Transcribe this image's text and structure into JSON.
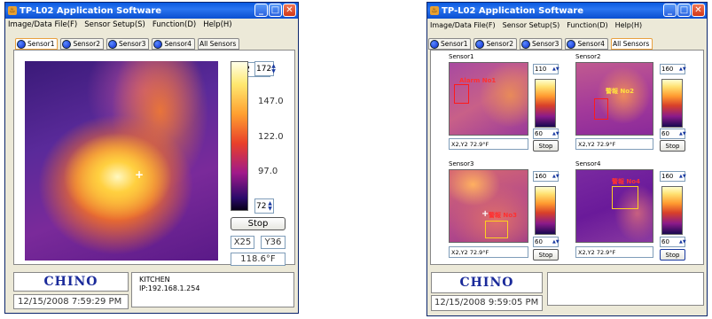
{
  "left": {
    "title": "TP-L02 Application Software",
    "menu": [
      "Image/Data File(F)",
      "Sensor Setup(S)",
      "Function(D)",
      "Help(H)"
    ],
    "tabs": [
      "Sensor1",
      "Sensor2",
      "Sensor3",
      "Sensor4",
      "All Sensors"
    ],
    "active_tab": "Sensor1",
    "scale_max": "172",
    "scale_min": "72",
    "ticks": [
      "147.0",
      "122.0",
      "97.0"
    ],
    "stop_label": "Stop",
    "x_coord": "X25",
    "y_coord": "Y36",
    "temperature": "118.6°F",
    "logo": "CHINO",
    "datetime": "12/15/2008 7:59:29 PM",
    "location": "KITCHEN",
    "ip": "IP:192.168.1.254"
  },
  "right": {
    "title": "TP-L02 Application Software",
    "menu": [
      "Image/Data File(F)",
      "Sensor Setup(S)",
      "Function(D)",
      "Help(H)"
    ],
    "tabs": [
      "Sensor1",
      "Sensor2",
      "Sensor3",
      "Sensor4",
      "All Sensors"
    ],
    "active_tab": "All Sensors",
    "sensors": [
      {
        "name": "Sensor1",
        "max": "110",
        "min": "60",
        "readout": "X2,Y2 72.9°F",
        "stop": "Stop",
        "alarm": "Alarm No1"
      },
      {
        "name": "Sensor2",
        "max": "160",
        "min": "60",
        "readout": "X2,Y2 72.9°F",
        "stop": "Stop",
        "alarm": "警報 No2"
      },
      {
        "name": "Sensor3",
        "max": "160",
        "min": "60",
        "readout": "X2,Y2 72.9°F",
        "stop": "Stop",
        "alarm": "警報 No3"
      },
      {
        "name": "Sensor4",
        "max": "160",
        "min": "60",
        "readout": "X2,Y2 72.9°F",
        "stop": "Stop",
        "alarm": "警報 No4"
      }
    ],
    "logo": "CHINO",
    "datetime": "12/15/2008 9:59:05 PM"
  }
}
